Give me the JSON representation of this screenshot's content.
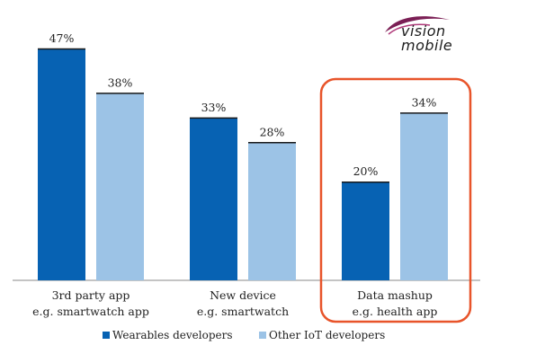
{
  "logo": {
    "line1": "vision",
    "line2": "mobile"
  },
  "chart_data": {
    "type": "bar",
    "title": "",
    "xlabel": "",
    "ylabel": "",
    "ylim": [
      0,
      50
    ],
    "grid": false,
    "legend_position": "bottom",
    "categories": [
      {
        "line1": "3rd party app",
        "line2": "e.g. smartwatch app"
      },
      {
        "line1": "New device",
        "line2": "e.g. smartwatch"
      },
      {
        "line1": "Data mashup",
        "line2": "e.g. health app"
      }
    ],
    "series": [
      {
        "name": "Wearables developers",
        "color": "#0762b3",
        "values": [
          47,
          33,
          20
        ],
        "labels": [
          "47%",
          "33%",
          "20%"
        ]
      },
      {
        "name": "Other IoT developers",
        "color": "#9cc3e6",
        "values": [
          38,
          28,
          34
        ],
        "labels": [
          "38%",
          "28%",
          "34%"
        ]
      }
    ],
    "highlight_category": 2,
    "highlight_color": "#e8542a"
  }
}
